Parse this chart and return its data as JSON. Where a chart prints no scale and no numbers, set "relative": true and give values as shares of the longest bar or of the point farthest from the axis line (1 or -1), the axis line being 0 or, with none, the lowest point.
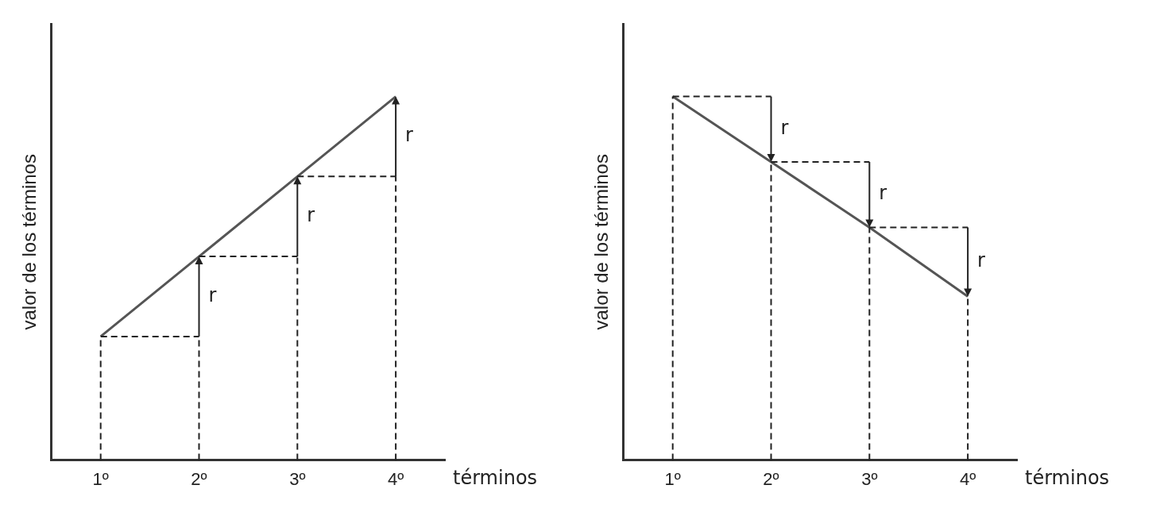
{
  "chart_data": [
    {
      "type": "line",
      "relative": true,
      "xlabel": "términos",
      "ylabel": "valor de los términos",
      "categories": [
        "1º",
        "2º",
        "3º",
        "4º"
      ],
      "color": "#555555",
      "values": [
        0.34,
        0.56,
        0.78,
        1
      ],
      "marker": "none",
      "legend": false,
      "annotations": [
        "r",
        "r",
        "r"
      ]
    },
    {
      "type": "line",
      "relative": true,
      "xlabel": "términos",
      "ylabel": "valor de los términos",
      "categories": [
        "1º",
        "2º",
        "3º",
        "4º"
      ],
      "color": "#555555",
      "values": [
        1,
        0.82,
        0.64,
        0.45
      ],
      "marker": "none",
      "legend": false,
      "annotations": [
        "r",
        "r",
        "r"
      ]
    }
  ]
}
